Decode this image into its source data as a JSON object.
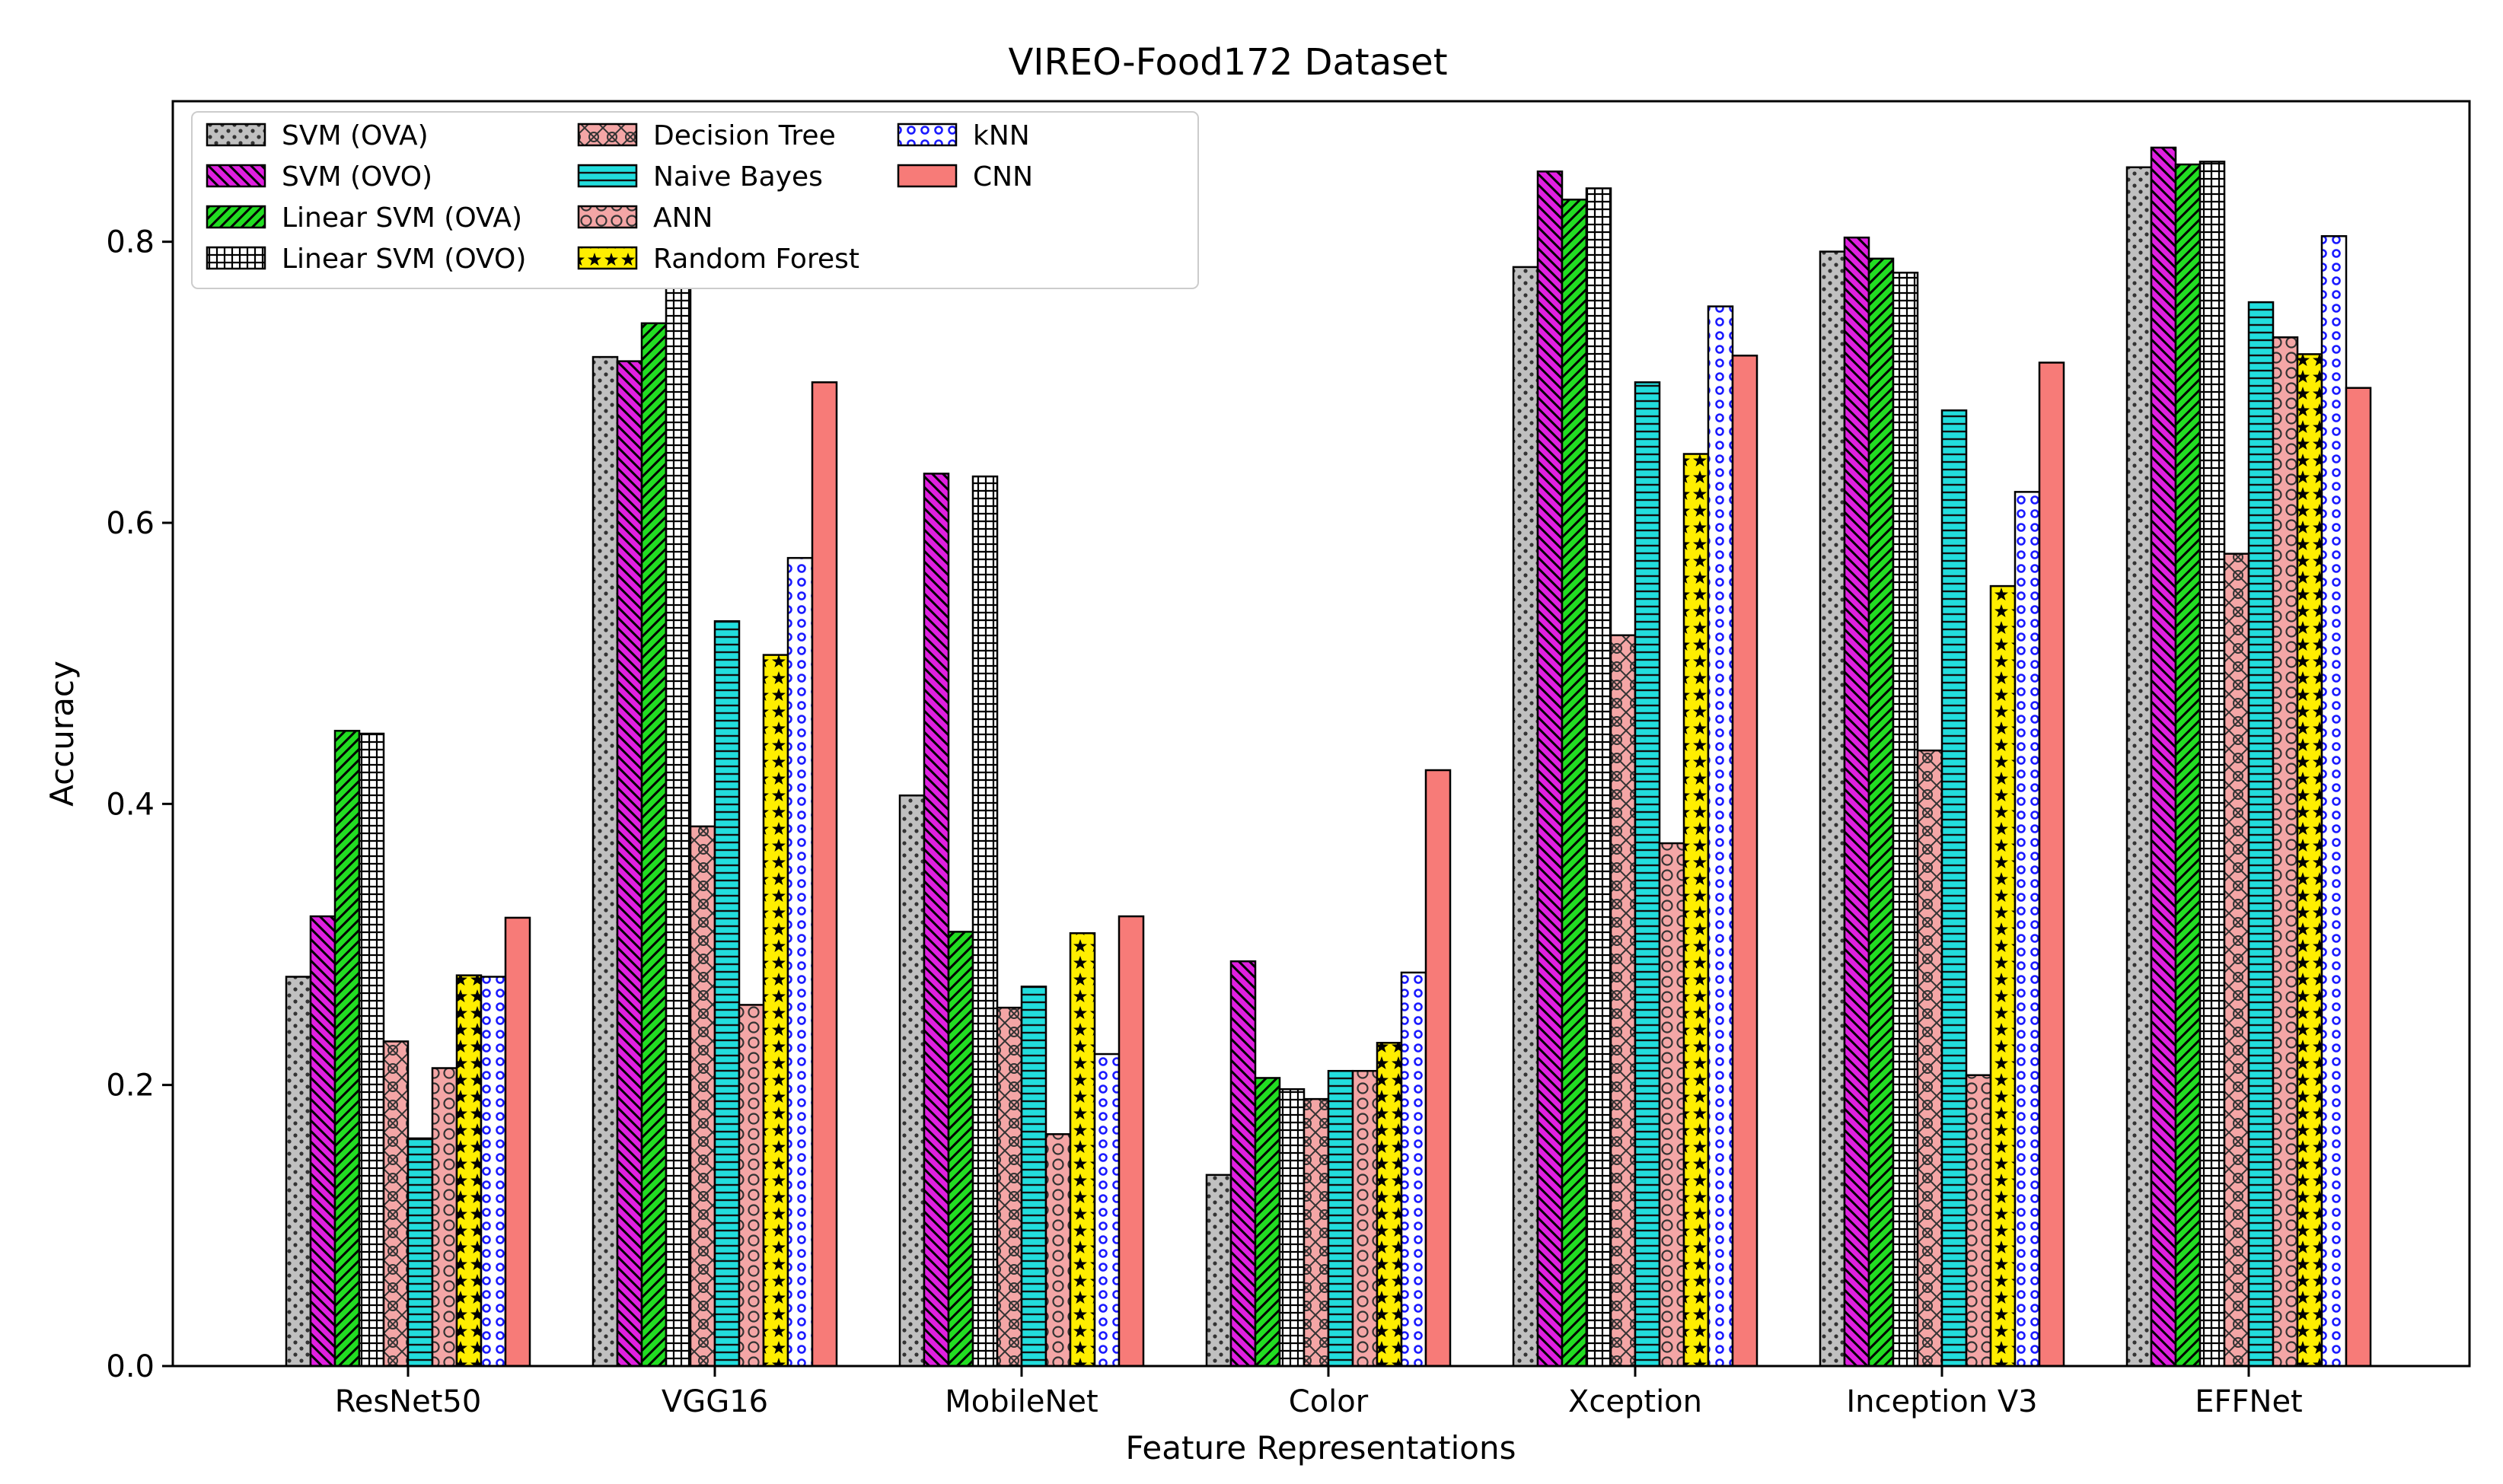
{
  "chart_data": {
    "type": "bar",
    "title": "VIREO-Food172 Dataset",
    "xlabel": "Feature Representations",
    "ylabel": "Accuracy",
    "ylim": [
      0,
      0.9
    ],
    "yticks": [
      "0.0",
      "0.2",
      "0.4",
      "0.6",
      "0.8"
    ],
    "categories": [
      "ResNet50",
      "VGG16",
      "MobileNet",
      "Color",
      "Xception",
      "Inception V3",
      "EFFNet"
    ],
    "legend_position": "top-left",
    "series": [
      {
        "name": "SVM (OVA)",
        "color": "#c0c0c0",
        "pattern": "dots",
        "values": [
          0.277,
          0.718,
          0.406,
          0.136,
          0.782,
          0.793,
          0.853
        ]
      },
      {
        "name": "SVM (OVO)",
        "color": "#e020e0",
        "pattern": "backslash",
        "values": [
          0.32,
          0.715,
          0.635,
          0.288,
          0.85,
          0.803,
          0.867
        ]
      },
      {
        "name": "Linear SVM (OVA)",
        "color": "#22dd22",
        "pattern": "slash",
        "values": [
          0.452,
          0.742,
          0.309,
          0.205,
          0.83,
          0.788,
          0.855
        ]
      },
      {
        "name": "Linear SVM (OVO)",
        "color": "#ffffff",
        "pattern": "hash",
        "values": [
          0.45,
          0.776,
          0.633,
          0.197,
          0.838,
          0.778,
          0.857
        ]
      },
      {
        "name": "Decision Tree",
        "color": "#f4a6a6",
        "pattern": "xring",
        "values": [
          0.231,
          0.384,
          0.255,
          0.19,
          0.52,
          0.438,
          0.578
        ]
      },
      {
        "name": "Naive Bayes",
        "color": "#22dddd",
        "pattern": "hlines",
        "values": [
          0.162,
          0.53,
          0.27,
          0.21,
          0.7,
          0.68,
          0.757
        ]
      },
      {
        "name": "ANN",
        "color": "#f4a6a6",
        "pattern": "rings",
        "values": [
          0.212,
          0.257,
          0.165,
          0.21,
          0.372,
          0.207,
          0.732
        ]
      },
      {
        "name": "Random Forest",
        "color": "#ffee00",
        "pattern": "stars",
        "values": [
          0.278,
          0.506,
          0.308,
          0.23,
          0.649,
          0.555,
          0.72
        ]
      },
      {
        "name": "kNN",
        "color": "#ffffff",
        "pattern": "bluerings",
        "values": [
          0.277,
          0.575,
          0.222,
          0.28,
          0.754,
          0.622,
          0.804
        ]
      },
      {
        "name": "CNN",
        "color": "#f77b78",
        "pattern": "none",
        "values": [
          0.319,
          0.7,
          0.32,
          0.424,
          0.719,
          0.714,
          0.696
        ]
      }
    ]
  }
}
